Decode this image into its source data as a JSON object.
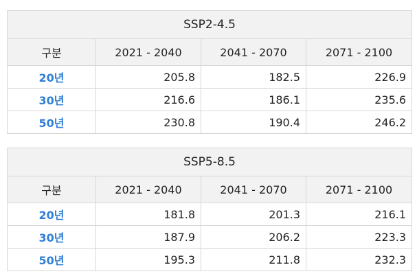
{
  "column_headers": [
    "구분",
    "2021 - 2040",
    "2041 - 2070",
    "2071 - 2100"
  ],
  "tables": [
    {
      "scenario": "SSP2-4.5",
      "rows": [
        {
          "label": "20년",
          "values": [
            "205.8",
            "182.5",
            "226.9"
          ]
        },
        {
          "label": "30년",
          "values": [
            "216.6",
            "186.1",
            "235.6"
          ]
        },
        {
          "label": "50년",
          "values": [
            "230.8",
            "190.4",
            "246.2"
          ]
        }
      ]
    },
    {
      "scenario": "SSP5-8.5",
      "rows": [
        {
          "label": "20년",
          "values": [
            "181.8",
            "201.3",
            "216.1"
          ]
        },
        {
          "label": "30년",
          "values": [
            "187.9",
            "206.2",
            "223.3"
          ]
        },
        {
          "label": "50년",
          "values": [
            "195.3",
            "211.8",
            "232.3"
          ]
        }
      ]
    }
  ],
  "colors": {
    "header_bg": "#f2f2f2",
    "row_label": "#2f7fd6",
    "border": "#d6d6d6"
  }
}
